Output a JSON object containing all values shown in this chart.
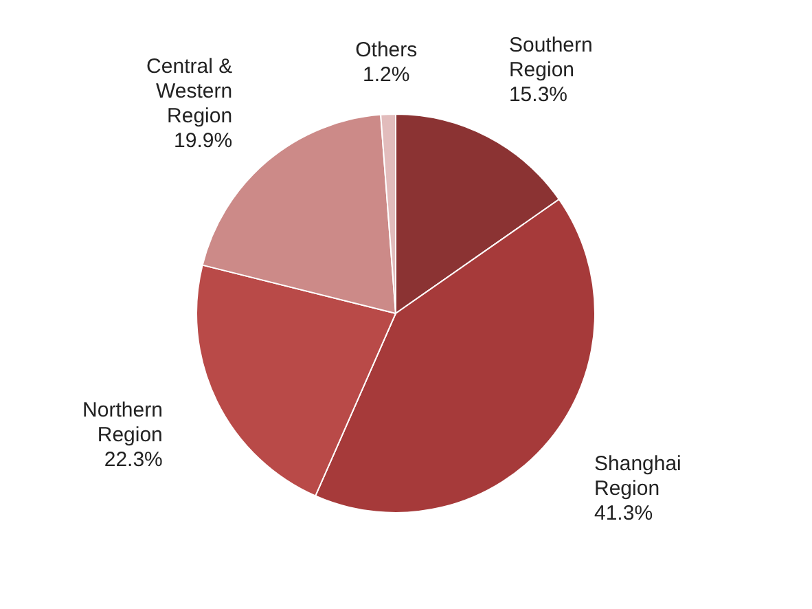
{
  "chart_data": {
    "type": "pie",
    "categories": [
      "Southern Region",
      "Shanghai Region",
      "Northern Region",
      "Central & Western Region",
      "Others"
    ],
    "values": [
      15.3,
      41.3,
      22.3,
      19.9,
      1.2
    ],
    "value_labels": [
      "15.3%",
      "41.3%",
      "22.3%",
      "19.9%",
      "1.2%"
    ],
    "colors": [
      "#8b3333",
      "#a63a3a",
      "#b94a48",
      "#cc8a88",
      "#e2bcbc"
    ]
  }
}
